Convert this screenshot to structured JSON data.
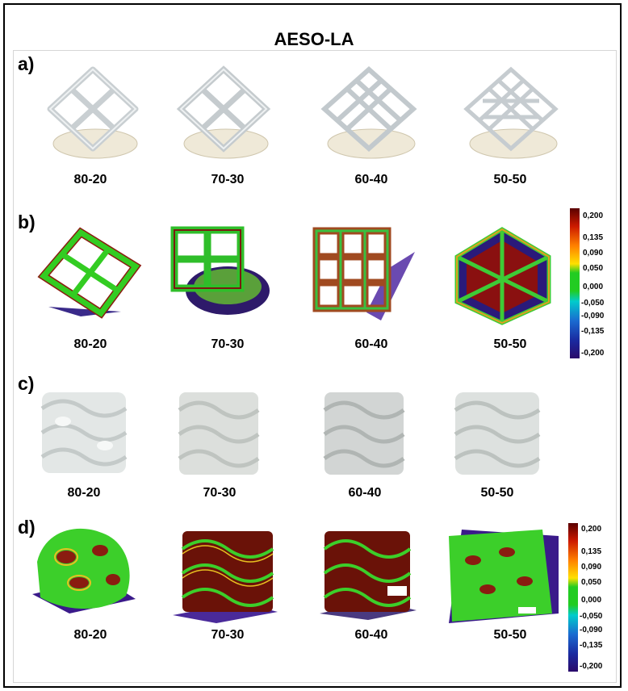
{
  "title": "AESO-LA",
  "panels": [
    {
      "letter": "a)",
      "captions": [
        "80-20",
        "70-30",
        "60-40",
        "50-50"
      ]
    },
    {
      "letter": "b)",
      "captions": [
        "80-20",
        "70-30",
        "60-40",
        "50-50"
      ]
    },
    {
      "letter": "c)",
      "captions": [
        "80-20",
        "70-30",
        "60-40",
        "50-50"
      ]
    },
    {
      "letter": "d)",
      "captions": [
        "80-20",
        "70-30",
        "60-40",
        "50-50"
      ]
    }
  ],
  "colorbar_b": {
    "ticks": [
      "0,200",
      "0,135",
      "0,090",
      "0,050",
      "0,000",
      "-0,050",
      "-0,090",
      "-0,135",
      "-0,200"
    ]
  },
  "colorbar_d": {
    "ticks": [
      "0,200",
      "0,135",
      "0,090",
      "0,050",
      "0,000",
      "-0,050",
      "-0,090",
      "-0,135",
      "-0,200"
    ]
  },
  "colors": {
    "deviation_high": "#5a0000",
    "deviation_zero": "#22cc22",
    "deviation_low": "#2a0a6a",
    "resin": "#d9dee0"
  }
}
